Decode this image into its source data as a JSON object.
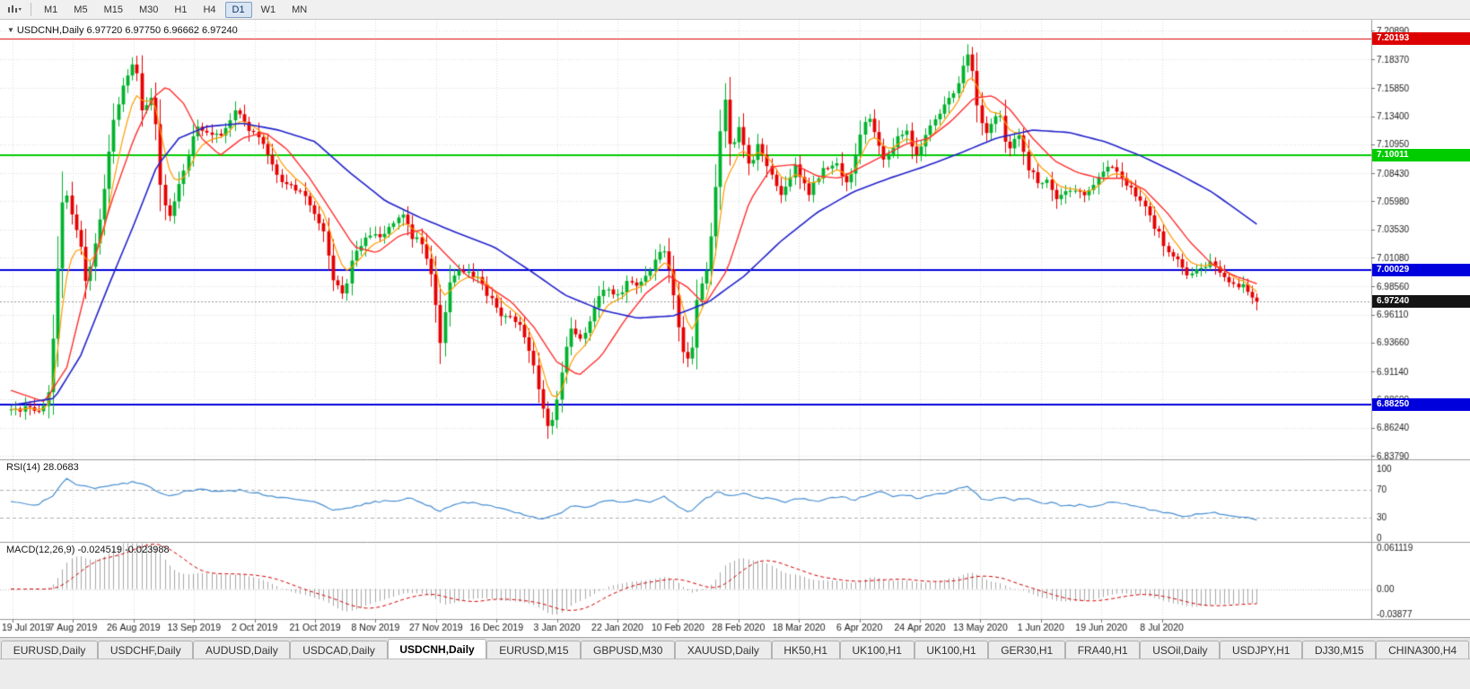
{
  "toolbar": {
    "timeframes": [
      {
        "label": "M1"
      },
      {
        "label": "M5"
      },
      {
        "label": "M15"
      },
      {
        "label": "M30"
      },
      {
        "label": "H1"
      },
      {
        "label": "H4"
      },
      {
        "label": "D1",
        "active": true
      },
      {
        "label": "W1"
      },
      {
        "label": "MN"
      }
    ]
  },
  "chart": {
    "title_line": "USDCNH,Daily 6.97720 6.97750 6.96662 6.97240"
  },
  "chart_data": {
    "type": "candlestick+indicators",
    "symbol": "USDCNH",
    "timeframe": "Daily",
    "ohlc_header": {
      "open": "6.97720",
      "high": "6.97750",
      "low": "6.96662",
      "close": "6.97240"
    },
    "price_axis": {
      "min": 6.8379,
      "max": 7.2089,
      "ticks": [
        {
          "value": 7.2089,
          "label": "7.20890"
        },
        {
          "value": 7.1837,
          "label": "7.18370"
        },
        {
          "value": 7.1585,
          "label": "7.15850"
        },
        {
          "value": 7.134,
          "label": "7.13400"
        },
        {
          "value": 7.1095,
          "label": "7.10950"
        },
        {
          "value": 7.0843,
          "label": "7.08430"
        },
        {
          "value": 7.0598,
          "label": "7.05980"
        },
        {
          "value": 7.0353,
          "label": "7.03530"
        },
        {
          "value": 7.0108,
          "label": "7.01080"
        },
        {
          "value": 6.9856,
          "label": "6.98560"
        },
        {
          "value": 6.9611,
          "label": "6.96110"
        },
        {
          "value": 6.9366,
          "label": "6.93660"
        },
        {
          "value": 6.9114,
          "label": "6.91140"
        },
        {
          "value": 6.8869,
          "label": "6.88690"
        },
        {
          "value": 6.8624,
          "label": "6.86240"
        },
        {
          "value": 6.8379,
          "label": "6.83790"
        }
      ]
    },
    "date_labels": [
      "19 Jul 2019",
      "7 Aug 2019",
      "26 Aug 2019",
      "13 Sep 2019",
      "2 Oct 2019",
      "21 Oct 2019",
      "8 Nov 2019",
      "27 Nov 2019",
      "16 Dec 2019",
      "3 Jan 2020",
      "22 Jan 2020",
      "10 Feb 2020",
      "28 Feb 2020",
      "18 Mar 2020",
      "6 Apr 2020",
      "24 Apr 2020",
      "13 May 2020",
      "1 Jun 2020",
      "19 Jun 2020",
      "8 Jul 2020"
    ],
    "levels": [
      {
        "price": 7.20193,
        "label": "7.20193",
        "color": "#dd0000",
        "width": 1
      },
      {
        "price": 7.10011,
        "label": "7.10011",
        "color": "#00cc00",
        "width": 2
      },
      {
        "price": 7.00029,
        "label": "7.00029",
        "color": "#0000dd",
        "width": 2
      },
      {
        "price": 6.8825,
        "label": "6.88250",
        "color": "#0000dd",
        "width": 2
      }
    ],
    "current_price": {
      "value": 6.9724,
      "label": "6.97240"
    },
    "colors": {
      "up": "#00b22d",
      "down": "#e60000",
      "ma_fast": "#ff9c00",
      "ma_mid": "#ff3030",
      "ma_slow": "#2222cc",
      "rsi": "#4a90d2",
      "macd_hist": "#a6a6a6",
      "macd_signal": "#d40000",
      "grid": "#dadada",
      "level_blue": "#0000dd"
    },
    "candles": {
      "count": 268,
      "price_path": [
        [
          0,
          6.88
        ],
        [
          0.024,
          6.878
        ],
        [
          0.03,
          6.892
        ],
        [
          0.035,
          6.96
        ],
        [
          0.042,
          7.075
        ],
        [
          0.048,
          7.05
        ],
        [
          0.055,
          7.028
        ],
        [
          0.06,
          6.988
        ],
        [
          0.067,
          7.02
        ],
        [
          0.074,
          7.06
        ],
        [
          0.081,
          7.125
        ],
        [
          0.089,
          7.158
        ],
        [
          0.099,
          7.185
        ],
        [
          0.105,
          7.14
        ],
        [
          0.114,
          7.155
        ],
        [
          0.121,
          7.062
        ],
        [
          0.128,
          7.045
        ],
        [
          0.139,
          7.09
        ],
        [
          0.15,
          7.128
        ],
        [
          0.161,
          7.115
        ],
        [
          0.171,
          7.12
        ],
        [
          0.18,
          7.14
        ],
        [
          0.187,
          7.128
        ],
        [
          0.197,
          7.118
        ],
        [
          0.208,
          7.095
        ],
        [
          0.218,
          7.075
        ],
        [
          0.229,
          7.07
        ],
        [
          0.24,
          7.058
        ],
        [
          0.251,
          7.035
        ],
        [
          0.259,
          6.99
        ],
        [
          0.267,
          6.976
        ],
        [
          0.274,
          7.01
        ],
        [
          0.283,
          7.025
        ],
        [
          0.294,
          7.03
        ],
        [
          0.305,
          7.036
        ],
        [
          0.316,
          7.05
        ],
        [
          0.321,
          7.03
        ],
        [
          0.33,
          7.025
        ],
        [
          0.339,
          6.988
        ],
        [
          0.344,
          6.935
        ],
        [
          0.352,
          6.988
        ],
        [
          0.362,
          7.0
        ],
        [
          0.373,
          6.995
        ],
        [
          0.384,
          6.975
        ],
        [
          0.395,
          6.96
        ],
        [
          0.406,
          6.955
        ],
        [
          0.416,
          6.93
        ],
        [
          0.424,
          6.895
        ],
        [
          0.432,
          6.855
        ],
        [
          0.44,
          6.9
        ],
        [
          0.449,
          6.952
        ],
        [
          0.458,
          6.94
        ],
        [
          0.467,
          6.965
        ],
        [
          0.476,
          6.985
        ],
        [
          0.485,
          6.975
        ],
        [
          0.496,
          6.99
        ],
        [
          0.504,
          6.985
        ],
        [
          0.514,
          7.0
        ],
        [
          0.523,
          7.025
        ],
        [
          0.53,
          6.99
        ],
        [
          0.538,
          6.932
        ],
        [
          0.545,
          6.916
        ],
        [
          0.552,
          6.985
        ],
        [
          0.559,
          7.0
        ],
        [
          0.566,
          7.08
        ],
        [
          0.572,
          7.158
        ],
        [
          0.578,
          7.1
        ],
        [
          0.585,
          7.128
        ],
        [
          0.592,
          7.09
        ],
        [
          0.6,
          7.11
        ],
        [
          0.61,
          7.082
        ],
        [
          0.618,
          7.065
        ],
        [
          0.629,
          7.09
        ],
        [
          0.64,
          7.066
        ],
        [
          0.651,
          7.088
        ],
        [
          0.661,
          7.094
        ],
        [
          0.672,
          7.076
        ],
        [
          0.682,
          7.12
        ],
        [
          0.69,
          7.135
        ],
        [
          0.699,
          7.096
        ],
        [
          0.708,
          7.11
        ],
        [
          0.718,
          7.124
        ],
        [
          0.726,
          7.1
        ],
        [
          0.735,
          7.12
        ],
        [
          0.744,
          7.135
        ],
        [
          0.754,
          7.15
        ],
        [
          0.762,
          7.17
        ],
        [
          0.769,
          7.193
        ],
        [
          0.777,
          7.13
        ],
        [
          0.784,
          7.12
        ],
        [
          0.793,
          7.14
        ],
        [
          0.8,
          7.1
        ],
        [
          0.808,
          7.124
        ],
        [
          0.816,
          7.09
        ],
        [
          0.824,
          7.076
        ],
        [
          0.831,
          7.08
        ],
        [
          0.84,
          7.062
        ],
        [
          0.849,
          7.07
        ],
        [
          0.86,
          7.066
        ],
        [
          0.87,
          7.075
        ],
        [
          0.881,
          7.09
        ],
        [
          0.891,
          7.08
        ],
        [
          0.899,
          7.07
        ],
        [
          0.908,
          7.06
        ],
        [
          0.917,
          7.04
        ],
        [
          0.927,
          7.02
        ],
        [
          0.935,
          7.01
        ],
        [
          0.944,
          6.996
        ],
        [
          0.953,
          7.0
        ],
        [
          0.963,
          7.005
        ],
        [
          0.971,
          6.996
        ],
        [
          0.98,
          6.99
        ],
        [
          0.989,
          6.985
        ],
        [
          1,
          6.9724
        ]
      ]
    },
    "ma_mid": [
      [
        0,
        6.895
      ],
      [
        0.027,
        6.885
      ],
      [
        0.045,
        6.915
      ],
      [
        0.063,
        6.995
      ],
      [
        0.081,
        7.06
      ],
      [
        0.099,
        7.115
      ],
      [
        0.114,
        7.15
      ],
      [
        0.125,
        7.16
      ],
      [
        0.139,
        7.145
      ],
      [
        0.153,
        7.115
      ],
      [
        0.168,
        7.1
      ],
      [
        0.186,
        7.115
      ],
      [
        0.204,
        7.12
      ],
      [
        0.222,
        7.105
      ],
      [
        0.24,
        7.08
      ],
      [
        0.258,
        7.05
      ],
      [
        0.276,
        7.02
      ],
      [
        0.294,
        7.015
      ],
      [
        0.312,
        7.03
      ],
      [
        0.33,
        7.035
      ],
      [
        0.348,
        7.015
      ],
      [
        0.366,
        6.995
      ],
      [
        0.384,
        6.985
      ],
      [
        0.402,
        6.972
      ],
      [
        0.42,
        6.95
      ],
      [
        0.438,
        6.92
      ],
      [
        0.456,
        6.908
      ],
      [
        0.474,
        6.925
      ],
      [
        0.492,
        6.955
      ],
      [
        0.51,
        6.98
      ],
      [
        0.528,
        6.995
      ],
      [
        0.543,
        6.985
      ],
      [
        0.557,
        6.97
      ],
      [
        0.575,
        7.0
      ],
      [
        0.593,
        7.06
      ],
      [
        0.611,
        7.09
      ],
      [
        0.629,
        7.092
      ],
      [
        0.647,
        7.082
      ],
      [
        0.665,
        7.08
      ],
      [
        0.683,
        7.09
      ],
      [
        0.701,
        7.1
      ],
      [
        0.719,
        7.11
      ],
      [
        0.737,
        7.115
      ],
      [
        0.755,
        7.13
      ],
      [
        0.773,
        7.15
      ],
      [
        0.788,
        7.152
      ],
      [
        0.802,
        7.14
      ],
      [
        0.82,
        7.115
      ],
      [
        0.838,
        7.095
      ],
      [
        0.856,
        7.085
      ],
      [
        0.874,
        7.08
      ],
      [
        0.892,
        7.08
      ],
      [
        0.91,
        7.07
      ],
      [
        0.928,
        7.05
      ],
      [
        0.946,
        7.025
      ],
      [
        0.964,
        7.005
      ],
      [
        0.982,
        6.995
      ],
      [
        1,
        6.988
      ]
    ],
    "ma_slow": [
      [
        0,
        6.882
      ],
      [
        0.035,
        6.888
      ],
      [
        0.056,
        6.925
      ],
      [
        0.078,
        6.985
      ],
      [
        0.099,
        7.04
      ],
      [
        0.117,
        7.09
      ],
      [
        0.135,
        7.115
      ],
      [
        0.157,
        7.125
      ],
      [
        0.186,
        7.128
      ],
      [
        0.215,
        7.122
      ],
      [
        0.244,
        7.112
      ],
      [
        0.272,
        7.085
      ],
      [
        0.301,
        7.06
      ],
      [
        0.33,
        7.045
      ],
      [
        0.359,
        7.032
      ],
      [
        0.388,
        7.02
      ],
      [
        0.416,
        7.0
      ],
      [
        0.445,
        6.978
      ],
      [
        0.474,
        6.965
      ],
      [
        0.503,
        6.958
      ],
      [
        0.532,
        6.96
      ],
      [
        0.56,
        6.972
      ],
      [
        0.589,
        6.995
      ],
      [
        0.618,
        7.025
      ],
      [
        0.647,
        7.05
      ],
      [
        0.676,
        7.068
      ],
      [
        0.705,
        7.08
      ],
      [
        0.733,
        7.09
      ],
      [
        0.762,
        7.102
      ],
      [
        0.791,
        7.115
      ],
      [
        0.82,
        7.122
      ],
      [
        0.849,
        7.12
      ],
      [
        0.878,
        7.112
      ],
      [
        0.906,
        7.1
      ],
      [
        0.935,
        7.085
      ],
      [
        0.964,
        7.068
      ],
      [
        1,
        7.04
      ]
    ],
    "rsi": {
      "label": "RSI(14) 28.0683",
      "value": 28.0683,
      "scale": [
        {
          "value": 100,
          "label": "100"
        },
        {
          "value": 70,
          "label": "70"
        },
        {
          "value": 30,
          "label": "30"
        },
        {
          "value": 0,
          "label": "0"
        }
      ],
      "bands": [
        70,
        30
      ],
      "path": [
        [
          0,
          52
        ],
        [
          0.02,
          48
        ],
        [
          0.033,
          60
        ],
        [
          0.045,
          87
        ],
        [
          0.055,
          76
        ],
        [
          0.07,
          72
        ],
        [
          0.085,
          78
        ],
        [
          0.1,
          82
        ],
        [
          0.112,
          74
        ],
        [
          0.125,
          62
        ],
        [
          0.14,
          67
        ],
        [
          0.155,
          71
        ],
        [
          0.17,
          67
        ],
        [
          0.185,
          70
        ],
        [
          0.2,
          64
        ],
        [
          0.22,
          58
        ],
        [
          0.24,
          54
        ],
        [
          0.258,
          42
        ],
        [
          0.275,
          46
        ],
        [
          0.29,
          52
        ],
        [
          0.31,
          55
        ],
        [
          0.322,
          58
        ],
        [
          0.335,
          48
        ],
        [
          0.345,
          39
        ],
        [
          0.357,
          50
        ],
        [
          0.37,
          52
        ],
        [
          0.385,
          46
        ],
        [
          0.4,
          40
        ],
        [
          0.415,
          33
        ],
        [
          0.428,
          27
        ],
        [
          0.44,
          36
        ],
        [
          0.452,
          47
        ],
        [
          0.462,
          44
        ],
        [
          0.472,
          51
        ],
        [
          0.482,
          55
        ],
        [
          0.492,
          52
        ],
        [
          0.503,
          55
        ],
        [
          0.515,
          53
        ],
        [
          0.524,
          60
        ],
        [
          0.535,
          46
        ],
        [
          0.545,
          38
        ],
        [
          0.556,
          55
        ],
        [
          0.567,
          67
        ],
        [
          0.578,
          61
        ],
        [
          0.587,
          65
        ],
        [
          0.598,
          60
        ],
        [
          0.61,
          57
        ],
        [
          0.622,
          53
        ],
        [
          0.633,
          58
        ],
        [
          0.644,
          53
        ],
        [
          0.656,
          58
        ],
        [
          0.667,
          60
        ],
        [
          0.678,
          55
        ],
        [
          0.688,
          64
        ],
        [
          0.698,
          67
        ],
        [
          0.708,
          60
        ],
        [
          0.718,
          63
        ],
        [
          0.728,
          58
        ],
        [
          0.738,
          62
        ],
        [
          0.75,
          66
        ],
        [
          0.76,
          71
        ],
        [
          0.769,
          74
        ],
        [
          0.778,
          58
        ],
        [
          0.788,
          55
        ],
        [
          0.797,
          61
        ],
        [
          0.806,
          55
        ],
        [
          0.816,
          59
        ],
        [
          0.826,
          50
        ],
        [
          0.836,
          52
        ],
        [
          0.846,
          46
        ],
        [
          0.856,
          48
        ],
        [
          0.866,
          46
        ],
        [
          0.876,
          50
        ],
        [
          0.886,
          53
        ],
        [
          0.896,
          49
        ],
        [
          0.906,
          45
        ],
        [
          0.916,
          41
        ],
        [
          0.926,
          38
        ],
        [
          0.936,
          34
        ],
        [
          0.946,
          32
        ],
        [
          0.956,
          36
        ],
        [
          0.966,
          38
        ],
        [
          0.976,
          33
        ],
        [
          0.988,
          30
        ],
        [
          1,
          28
        ]
      ]
    },
    "macd": {
      "label": "MACD(12,26,9) -0.024519 -0.023988",
      "macd_value": -0.024519,
      "signal_value": -0.023988,
      "params": [
        12,
        26,
        9
      ],
      "scale": {
        "max": 0.061119,
        "max_label": "0.061119",
        "zero_label": "0.00",
        "min": -0.03877,
        "min_label": "-0.03877"
      }
    }
  },
  "tabs": {
    "items": [
      {
        "label": "EURUSD,Daily"
      },
      {
        "label": "USDCHF,Daily"
      },
      {
        "label": "AUDUSD,Daily"
      },
      {
        "label": "USDCAD,Daily"
      },
      {
        "label": "USDCNH,Daily",
        "active": true
      },
      {
        "label": "EURUSD,M15"
      },
      {
        "label": "GBPUSD,M30"
      },
      {
        "label": "XAUUSD,Daily"
      },
      {
        "label": "HK50,H1"
      },
      {
        "label": "UK100,H1"
      },
      {
        "label": "UK100,H1"
      },
      {
        "label": "GER30,H1"
      },
      {
        "label": "FRA40,H1"
      },
      {
        "label": "USOil,Daily"
      },
      {
        "label": "USDJPY,H1"
      },
      {
        "label": "DJ30,M15"
      },
      {
        "label": "CHINA300,H4"
      }
    ]
  }
}
